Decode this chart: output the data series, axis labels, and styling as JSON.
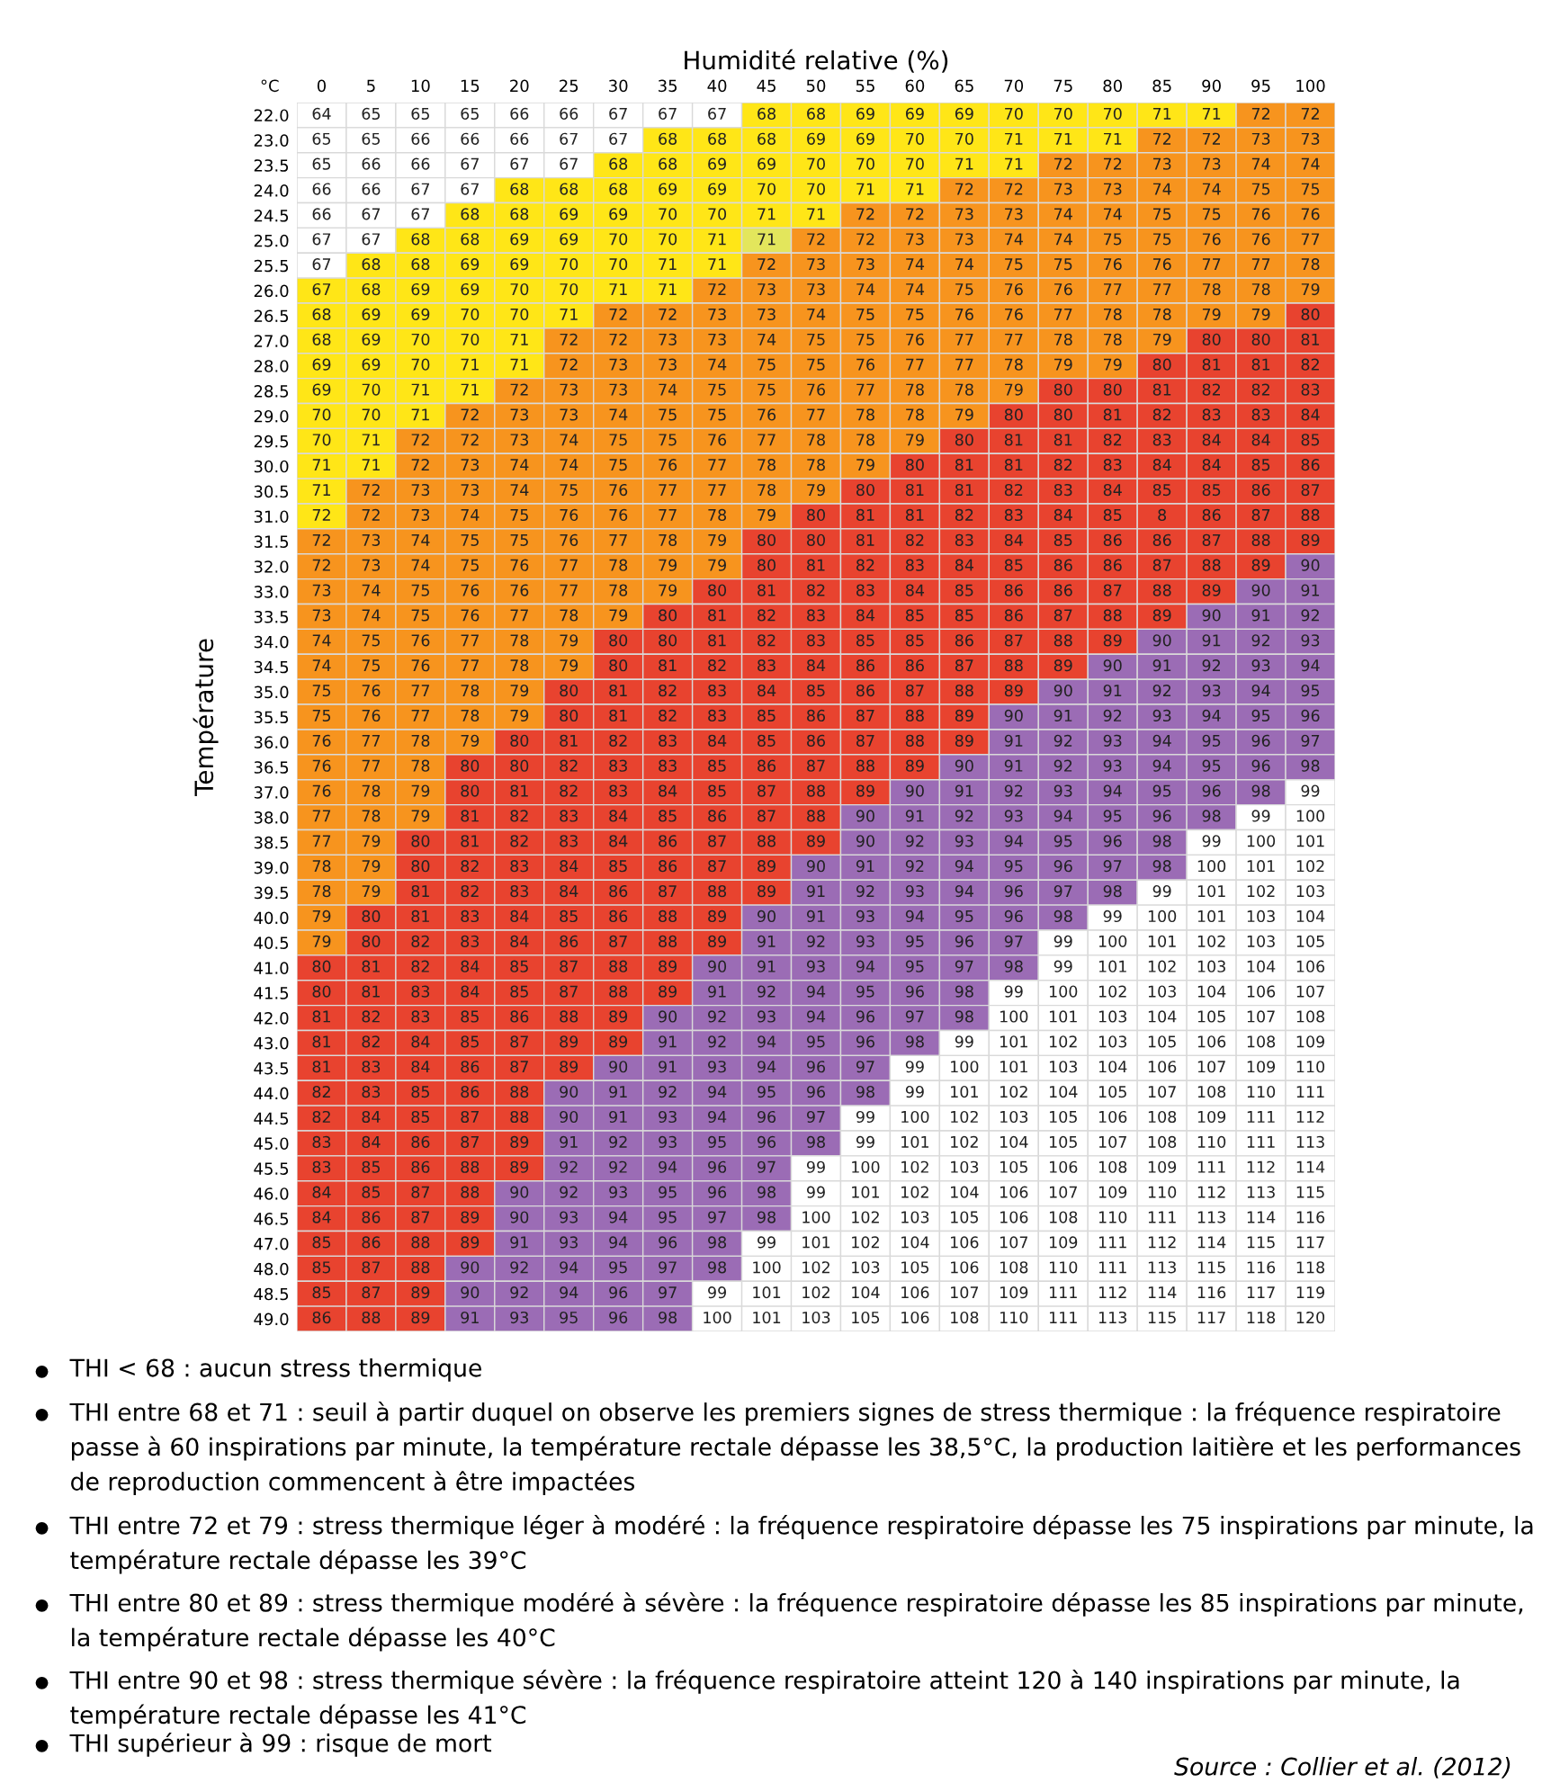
{
  "chart_data": {
    "type": "heatmap",
    "data_labels": true,
    "xlabel": "Humidité relative (%)",
    "ylabel": "Température",
    "categories": [
      "0",
      "5",
      "10",
      "15",
      "20",
      "25",
      "30",
      "35",
      "40",
      "45",
      "50",
      "55",
      "60",
      "65",
      "70",
      "75",
      "80",
      "85",
      "90",
      "95",
      "100"
    ],
    "y_categories": [
      "22.0",
      "23.0",
      "23.5",
      "24.0",
      "24.5",
      "25.0",
      "25.5",
      "26.0",
      "26.5",
      "27.0",
      "28.0",
      "28.5",
      "29.0",
      "29.5",
      "30.0",
      "30.5",
      "31.0",
      "31.5",
      "32.0",
      "33.0",
      "33.5",
      "34.0",
      "34.5",
      "35.0",
      "35.5",
      "36.0",
      "36.5",
      "37.0",
      "38.0",
      "38.5",
      "39.0",
      "39.5",
      "40.0",
      "40.5",
      "41.0",
      "41.5",
      "42.0",
      "43.0",
      "43.5",
      "44.0",
      "44.5",
      "45.0",
      "45.5",
      "46.0",
      "46.5",
      "47.0",
      "48.0",
      "48.5",
      "49.0"
    ],
    "cells": [
      [
        64,
        65,
        65,
        65,
        66,
        66,
        67,
        67,
        67,
        68,
        68,
        69,
        69,
        69,
        70,
        70,
        70,
        71,
        71,
        72,
        72
      ],
      [
        65,
        65,
        66,
        66,
        66,
        67,
        67,
        68,
        68,
        68,
        69,
        69,
        70,
        70,
        71,
        71,
        71,
        72,
        72,
        73,
        73
      ],
      [
        65,
        66,
        66,
        67,
        67,
        67,
        68,
        68,
        69,
        69,
        70,
        70,
        70,
        71,
        71,
        72,
        72,
        73,
        73,
        74,
        74
      ],
      [
        66,
        66,
        67,
        67,
        68,
        68,
        68,
        69,
        69,
        70,
        70,
        71,
        71,
        72,
        72,
        73,
        73,
        74,
        74,
        75,
        75
      ],
      [
        66,
        67,
        67,
        68,
        68,
        69,
        69,
        70,
        70,
        71,
        71,
        72,
        72,
        73,
        73,
        74,
        74,
        75,
        75,
        76,
        76
      ],
      [
        67,
        67,
        68,
        68,
        69,
        69,
        70,
        70,
        71,
        71,
        72,
        72,
        73,
        73,
        74,
        74,
        75,
        75,
        76,
        76,
        77
      ],
      [
        67,
        68,
        68,
        69,
        69,
        70,
        70,
        71,
        71,
        72,
        73,
        73,
        74,
        74,
        75,
        75,
        76,
        76,
        77,
        77,
        78
      ],
      [
        67,
        68,
        69,
        69,
        70,
        70,
        71,
        71,
        72,
        73,
        73,
        74,
        74,
        75,
        76,
        76,
        77,
        77,
        78,
        78,
        79
      ],
      [
        68,
        69,
        69,
        70,
        70,
        71,
        72,
        72,
        73,
        73,
        74,
        75,
        75,
        76,
        76,
        77,
        78,
        78,
        79,
        79,
        80
      ],
      [
        68,
        69,
        70,
        70,
        71,
        72,
        72,
        73,
        73,
        74,
        75,
        75,
        76,
        77,
        77,
        78,
        78,
        79,
        80,
        80,
        81
      ],
      [
        69,
        69,
        70,
        71,
        71,
        72,
        73,
        73,
        74,
        75,
        75,
        76,
        77,
        77,
        78,
        79,
        79,
        80,
        81,
        81,
        82
      ],
      [
        69,
        70,
        71,
        71,
        72,
        73,
        73,
        74,
        75,
        75,
        76,
        77,
        78,
        78,
        79,
        80,
        80,
        81,
        82,
        82,
        83
      ],
      [
        70,
        70,
        71,
        72,
        73,
        73,
        74,
        75,
        75,
        76,
        77,
        78,
        78,
        79,
        80,
        80,
        81,
        82,
        83,
        83,
        84
      ],
      [
        70,
        71,
        72,
        72,
        73,
        74,
        75,
        75,
        76,
        77,
        78,
        78,
        79,
        80,
        81,
        81,
        82,
        83,
        84,
        84,
        85
      ],
      [
        71,
        71,
        72,
        73,
        74,
        74,
        75,
        76,
        77,
        78,
        78,
        79,
        80,
        81,
        81,
        82,
        83,
        84,
        84,
        85,
        86
      ],
      [
        71,
        72,
        73,
        73,
        74,
        75,
        76,
        77,
        77,
        78,
        79,
        80,
        81,
        81,
        82,
        83,
        84,
        85,
        85,
        86,
        87
      ],
      [
        72,
        72,
        73,
        74,
        75,
        76,
        76,
        77,
        78,
        79,
        80,
        81,
        81,
        82,
        83,
        84,
        85,
        8,
        86,
        87,
        88
      ],
      [
        72,
        73,
        74,
        75,
        75,
        76,
        77,
        78,
        79,
        80,
        80,
        81,
        82,
        83,
        84,
        85,
        86,
        86,
        87,
        88,
        89
      ],
      [
        72,
        73,
        74,
        75,
        76,
        77,
        78,
        79,
        79,
        80,
        81,
        82,
        83,
        84,
        85,
        86,
        86,
        87,
        88,
        89,
        90
      ],
      [
        73,
        74,
        75,
        76,
        76,
        77,
        78,
        79,
        80,
        81,
        82,
        83,
        84,
        85,
        86,
        86,
        87,
        88,
        89,
        90,
        91
      ],
      [
        73,
        74,
        75,
        76,
        77,
        78,
        79,
        80,
        81,
        82,
        83,
        84,
        85,
        85,
        86,
        87,
        88,
        89,
        90,
        91,
        92
      ],
      [
        74,
        75,
        76,
        77,
        78,
        79,
        80,
        80,
        81,
        82,
        83,
        85,
        85,
        86,
        87,
        88,
        89,
        90,
        91,
        92,
        93
      ],
      [
        74,
        75,
        76,
        77,
        78,
        79,
        80,
        81,
        82,
        83,
        84,
        86,
        86,
        87,
        88,
        89,
        90,
        91,
        92,
        93,
        94
      ],
      [
        75,
        76,
        77,
        78,
        79,
        80,
        81,
        82,
        83,
        84,
        85,
        86,
        87,
        88,
        89,
        90,
        91,
        92,
        93,
        94,
        95
      ],
      [
        75,
        76,
        77,
        78,
        79,
        80,
        81,
        82,
        83,
        85,
        86,
        87,
        88,
        89,
        90,
        91,
        92,
        93,
        94,
        95,
        96
      ],
      [
        76,
        77,
        78,
        79,
        80,
        81,
        82,
        83,
        84,
        85,
        86,
        87,
        88,
        89,
        91,
        92,
        93,
        94,
        95,
        96,
        97
      ],
      [
        76,
        77,
        78,
        80,
        80,
        82,
        83,
        83,
        85,
        86,
        87,
        88,
        89,
        90,
        91,
        92,
        93,
        94,
        95,
        96,
        98
      ],
      [
        76,
        78,
        79,
        80,
        81,
        82,
        83,
        84,
        85,
        87,
        88,
        89,
        90,
        91,
        92,
        93,
        94,
        95,
        96,
        98,
        99
      ],
      [
        77,
        78,
        79,
        81,
        82,
        83,
        84,
        85,
        86,
        87,
        88,
        90,
        91,
        92,
        93,
        94,
        95,
        96,
        98,
        99,
        100
      ],
      [
        77,
        79,
        80,
        81,
        82,
        83,
        84,
        86,
        87,
        88,
        89,
        90,
        92,
        93,
        94,
        95,
        96,
        98,
        99,
        100,
        101
      ],
      [
        78,
        79,
        80,
        82,
        83,
        84,
        85,
        86,
        87,
        89,
        90,
        91,
        92,
        94,
        95,
        96,
        97,
        98,
        100,
        101,
        102
      ],
      [
        78,
        79,
        81,
        82,
        83,
        84,
        86,
        87,
        88,
        89,
        91,
        92,
        93,
        94,
        96,
        97,
        98,
        99,
        101,
        102,
        103
      ],
      [
        79,
        80,
        81,
        83,
        84,
        85,
        86,
        88,
        89,
        90,
        91,
        93,
        94,
        95,
        96,
        98,
        99,
        100,
        101,
        103,
        104
      ],
      [
        79,
        80,
        82,
        83,
        84,
        86,
        87,
        88,
        89,
        91,
        92,
        93,
        95,
        96,
        97,
        99,
        100,
        101,
        102,
        103,
        105
      ],
      [
        80,
        81,
        82,
        84,
        85,
        87,
        88,
        89,
        90,
        91,
        93,
        94,
        95,
        97,
        98,
        99,
        101,
        102,
        103,
        104,
        106
      ],
      [
        80,
        81,
        83,
        84,
        85,
        87,
        88,
        89,
        91,
        92,
        94,
        95,
        96,
        98,
        99,
        100,
        102,
        103,
        104,
        106,
        107
      ],
      [
        81,
        82,
        83,
        85,
        86,
        88,
        89,
        90,
        92,
        93,
        94,
        96,
        97,
        98,
        100,
        101,
        103,
        104,
        105,
        107,
        108
      ],
      [
        81,
        82,
        84,
        85,
        87,
        89,
        89,
        91,
        92,
        94,
        95,
        96,
        98,
        99,
        101,
        102,
        103,
        105,
        106,
        108,
        109
      ],
      [
        81,
        83,
        84,
        86,
        87,
        89,
        90,
        91,
        93,
        94,
        96,
        97,
        99,
        100,
        101,
        103,
        104,
        106,
        107,
        109,
        110
      ],
      [
        82,
        83,
        85,
        86,
        88,
        90,
        91,
        92,
        94,
        95,
        96,
        98,
        99,
        101,
        102,
        104,
        105,
        107,
        108,
        110,
        111
      ],
      [
        82,
        84,
        85,
        87,
        88,
        90,
        91,
        93,
        94,
        96,
        97,
        99,
        100,
        102,
        103,
        105,
        106,
        108,
        109,
        111,
        112
      ],
      [
        83,
        84,
        86,
        87,
        89,
        91,
        92,
        93,
        95,
        96,
        98,
        99,
        101,
        102,
        104,
        105,
        107,
        108,
        110,
        111,
        113
      ],
      [
        83,
        85,
        86,
        88,
        89,
        92,
        92,
        94,
        96,
        97,
        99,
        100,
        102,
        103,
        105,
        106,
        108,
        109,
        111,
        112,
        114
      ],
      [
        84,
        85,
        87,
        88,
        90,
        92,
        93,
        95,
        96,
        98,
        99,
        101,
        102,
        104,
        106,
        107,
        109,
        110,
        112,
        113,
        115
      ],
      [
        84,
        86,
        87,
        89,
        90,
        93,
        94,
        95,
        97,
        98,
        100,
        102,
        103,
        105,
        106,
        108,
        110,
        111,
        113,
        114,
        116
      ],
      [
        85,
        86,
        88,
        89,
        91,
        93,
        94,
        96,
        98,
        99,
        101,
        102,
        104,
        106,
        107,
        109,
        111,
        112,
        114,
        115,
        117
      ],
      [
        85,
        87,
        88,
        90,
        92,
        94,
        95,
        97,
        98,
        100,
        102,
        103,
        105,
        106,
        108,
        110,
        111,
        113,
        115,
        116,
        118
      ],
      [
        85,
        87,
        89,
        90,
        92,
        94,
        96,
        97,
        99,
        101,
        102,
        104,
        106,
        107,
        109,
        111,
        112,
        114,
        116,
        117,
        119
      ],
      [
        86,
        88,
        89,
        91,
        93,
        95,
        96,
        98,
        100,
        101,
        103,
        105,
        106,
        108,
        110,
        111,
        113,
        115,
        117,
        118,
        120
      ]
    ],
    "colors": [
      [
        "#ffffff",
        "#ffffff",
        "#ffffff",
        "#ffffff",
        "#ffffff",
        "#ffffff",
        "#ffffff",
        "#ffffff",
        "#ffffff",
        "#ffe617",
        "#ffe617",
        "#ffe617",
        "#ffe617",
        "#ffe617",
        "#ffe617",
        "#ffe617",
        "#ffe617",
        "#ffe617",
        "#ffe617",
        "#f7941e",
        "#f7941e"
      ],
      [
        "#ffffff",
        "#ffffff",
        "#ffffff",
        "#ffffff",
        "#ffffff",
        "#ffffff",
        "#ffffff",
        "#ffe617",
        "#ffe617",
        "#ffe617",
        "#ffe617",
        "#ffe617",
        "#ffe617",
        "#ffe617",
        "#ffe617",
        "#ffe617",
        "#ffe617",
        "#f7941e",
        "#f7941e",
        "#f7941e",
        "#f7941e"
      ],
      [
        "#ffffff",
        "#ffffff",
        "#ffffff",
        "#ffffff",
        "#ffffff",
        "#ffffff",
        "#ffe617",
        "#ffe617",
        "#ffe617",
        "#ffe617",
        "#ffe617",
        "#ffe617",
        "#ffe617",
        "#ffe617",
        "#ffe617",
        "#f7941e",
        "#f7941e",
        "#f7941e",
        "#f7941e",
        "#f7941e",
        "#f7941e"
      ],
      [
        "#ffffff",
        "#ffffff",
        "#ffffff",
        "#ffffff",
        "#ffe617",
        "#ffe617",
        "#ffe617",
        "#ffe617",
        "#ffe617",
        "#ffe617",
        "#ffe617",
        "#ffe617",
        "#ffe617",
        "#f7941e",
        "#f7941e",
        "#f7941e",
        "#f7941e",
        "#f7941e",
        "#f7941e",
        "#f7941e",
        "#f7941e"
      ],
      [
        "#ffffff",
        "#ffffff",
        "#ffffff",
        "#ffe617",
        "#ffe617",
        "#ffe617",
        "#ffe617",
        "#ffe617",
        "#ffe617",
        "#ffe617",
        "#ffe617",
        "#f7941e",
        "#f7941e",
        "#f7941e",
        "#f7941e",
        "#f7941e",
        "#f7941e",
        "#f7941e",
        "#f7941e",
        "#f7941e",
        "#f7941e"
      ],
      [
        "#ffffff",
        "#ffffff",
        "#ffe617",
        "#ffe617",
        "#ffe617",
        "#ffe617",
        "#ffe617",
        "#ffe617",
        "#ffe617",
        "#e3e65c",
        "#f7941e",
        "#f7941e",
        "#f7941e",
        "#f7941e",
        "#f7941e",
        "#f7941e",
        "#f7941e",
        "#f7941e",
        "#f7941e",
        "#f7941e",
        "#f7941e"
      ],
      [
        "#ffffff",
        "#ffe617",
        "#ffe617",
        "#ffe617",
        "#ffe617",
        "#ffe617",
        "#ffe617",
        "#ffe617",
        "#ffe617",
        "#f7941e",
        "#f7941e",
        "#f7941e",
        "#f7941e",
        "#f7941e",
        "#f7941e",
        "#f7941e",
        "#f7941e",
        "#f7941e",
        "#f7941e",
        "#f7941e",
        "#f7941e"
      ],
      [
        "#ffe617",
        "#ffe617",
        "#ffe617",
        "#ffe617",
        "#ffe617",
        "#ffe617",
        "#ffe617",
        "#ffe617",
        "#f7941e",
        "#f7941e",
        "#f7941e",
        "#f7941e",
        "#f7941e",
        "#f7941e",
        "#f7941e",
        "#f7941e",
        "#f7941e",
        "#f7941e",
        "#f7941e",
        "#f7941e",
        "#f7941e"
      ],
      [
        "#ffe617",
        "#ffe617",
        "#ffe617",
        "#ffe617",
        "#ffe617",
        "#ffe617",
        "#f7941e",
        "#f7941e",
        "#f7941e",
        "#f7941e",
        "#f7941e",
        "#f7941e",
        "#f7941e",
        "#f7941e",
        "#f7941e",
        "#f7941e",
        "#f7941e",
        "#f7941e",
        "#f7941e",
        "#f7941e",
        "#e8432f"
      ],
      [
        "#ffe617",
        "#ffe617",
        "#ffe617",
        "#ffe617",
        "#ffe617",
        "#f7941e",
        "#f7941e",
        "#f7941e",
        "#f7941e",
        "#f7941e",
        "#f7941e",
        "#f7941e",
        "#f7941e",
        "#f7941e",
        "#f7941e",
        "#f7941e",
        "#f7941e",
        "#f7941e",
        "#e8432f",
        "#e8432f",
        "#e8432f"
      ],
      [
        "#ffe617",
        "#ffe617",
        "#ffe617",
        "#ffe617",
        "#ffe617",
        "#f7941e",
        "#f7941e",
        "#f7941e",
        "#f7941e",
        "#f7941e",
        "#f7941e",
        "#f7941e",
        "#f7941e",
        "#f7941e",
        "#f7941e",
        "#f7941e",
        "#f7941e",
        "#e8432f",
        "#e8432f",
        "#e8432f",
        "#e8432f"
      ],
      [
        "#ffe617",
        "#ffe617",
        "#ffe617",
        "#ffe617",
        "#f7941e",
        "#f7941e",
        "#f7941e",
        "#f7941e",
        "#f7941e",
        "#f7941e",
        "#f7941e",
        "#f7941e",
        "#f7941e",
        "#f7941e",
        "#f7941e",
        "#e8432f",
        "#e8432f",
        "#e8432f",
        "#e8432f",
        "#e8432f",
        "#e8432f"
      ],
      [
        "#ffe617",
        "#ffe617",
        "#ffe617",
        "#f7941e",
        "#f7941e",
        "#f7941e",
        "#f7941e",
        "#f7941e",
        "#f7941e",
        "#f7941e",
        "#f7941e",
        "#f7941e",
        "#f7941e",
        "#f7941e",
        "#e8432f",
        "#e8432f",
        "#e8432f",
        "#e8432f",
        "#e8432f",
        "#e8432f",
        "#e8432f"
      ],
      [
        "#ffe617",
        "#ffe617",
        "#f7941e",
        "#f7941e",
        "#f7941e",
        "#f7941e",
        "#f7941e",
        "#f7941e",
        "#f7941e",
        "#f7941e",
        "#f7941e",
        "#f7941e",
        "#f7941e",
        "#e8432f",
        "#e8432f",
        "#e8432f",
        "#e8432f",
        "#e8432f",
        "#e8432f",
        "#e8432f",
        "#e8432f"
      ],
      [
        "#ffe617",
        "#ffe617",
        "#f7941e",
        "#f7941e",
        "#f7941e",
        "#f7941e",
        "#f7941e",
        "#f7941e",
        "#f7941e",
        "#f7941e",
        "#f7941e",
        "#f7941e",
        "#e8432f",
        "#e8432f",
        "#e8432f",
        "#e8432f",
        "#e8432f",
        "#e8432f",
        "#e8432f",
        "#e8432f",
        "#e8432f"
      ],
      [
        "#ffe617",
        "#f7941e",
        "#f7941e",
        "#f7941e",
        "#f7941e",
        "#f7941e",
        "#f7941e",
        "#f7941e",
        "#f7941e",
        "#f7941e",
        "#f7941e",
        "#e8432f",
        "#e8432f",
        "#e8432f",
        "#e8432f",
        "#e8432f",
        "#e8432f",
        "#e8432f",
        "#e8432f",
        "#e8432f",
        "#e8432f"
      ],
      [
        "#ffe617",
        "#f7941e",
        "#f7941e",
        "#f7941e",
        "#f7941e",
        "#f7941e",
        "#f7941e",
        "#f7941e",
        "#f7941e",
        "#f7941e",
        "#e8432f",
        "#e8432f",
        "#e8432f",
        "#e8432f",
        "#e8432f",
        "#e8432f",
        "#e8432f",
        "#e8432f",
        "#e8432f",
        "#e8432f",
        "#e8432f"
      ],
      [
        "#f7941e",
        "#f7941e",
        "#f7941e",
        "#f7941e",
        "#f7941e",
        "#f7941e",
        "#f7941e",
        "#f7941e",
        "#f7941e",
        "#e8432f",
        "#e8432f",
        "#e8432f",
        "#e8432f",
        "#e8432f",
        "#e8432f",
        "#e8432f",
        "#e8432f",
        "#e8432f",
        "#e8432f",
        "#e8432f",
        "#e8432f"
      ],
      [
        "#f7941e",
        "#f7941e",
        "#f7941e",
        "#f7941e",
        "#f7941e",
        "#f7941e",
        "#f7941e",
        "#f7941e",
        "#f7941e",
        "#e8432f",
        "#e8432f",
        "#e8432f",
        "#e8432f",
        "#e8432f",
        "#e8432f",
        "#e8432f",
        "#e8432f",
        "#e8432f",
        "#e8432f",
        "#e8432f",
        "#9b6cb5"
      ],
      [
        "#f7941e",
        "#f7941e",
        "#f7941e",
        "#f7941e",
        "#f7941e",
        "#f7941e",
        "#f7941e",
        "#f7941e",
        "#e8432f",
        "#e8432f",
        "#e8432f",
        "#e8432f",
        "#e8432f",
        "#e8432f",
        "#e8432f",
        "#e8432f",
        "#e8432f",
        "#e8432f",
        "#e8432f",
        "#9b6cb5",
        "#9b6cb5"
      ],
      [
        "#f7941e",
        "#f7941e",
        "#f7941e",
        "#f7941e",
        "#f7941e",
        "#f7941e",
        "#f7941e",
        "#e8432f",
        "#e8432f",
        "#e8432f",
        "#e8432f",
        "#e8432f",
        "#e8432f",
        "#e8432f",
        "#e8432f",
        "#e8432f",
        "#e8432f",
        "#e8432f",
        "#9b6cb5",
        "#9b6cb5",
        "#9b6cb5"
      ],
      [
        "#f7941e",
        "#f7941e",
        "#f7941e",
        "#f7941e",
        "#f7941e",
        "#f7941e",
        "#e8432f",
        "#e8432f",
        "#e8432f",
        "#e8432f",
        "#e8432f",
        "#e8432f",
        "#e8432f",
        "#e8432f",
        "#e8432f",
        "#e8432f",
        "#e8432f",
        "#9b6cb5",
        "#9b6cb5",
        "#9b6cb5",
        "#9b6cb5"
      ],
      [
        "#f7941e",
        "#f7941e",
        "#f7941e",
        "#f7941e",
        "#f7941e",
        "#f7941e",
        "#e8432f",
        "#e8432f",
        "#e8432f",
        "#e8432f",
        "#e8432f",
        "#e8432f",
        "#e8432f",
        "#e8432f",
        "#e8432f",
        "#e8432f",
        "#9b6cb5",
        "#9b6cb5",
        "#9b6cb5",
        "#9b6cb5",
        "#9b6cb5"
      ],
      [
        "#f7941e",
        "#f7941e",
        "#f7941e",
        "#f7941e",
        "#f7941e",
        "#e8432f",
        "#e8432f",
        "#e8432f",
        "#e8432f",
        "#e8432f",
        "#e8432f",
        "#e8432f",
        "#e8432f",
        "#e8432f",
        "#e8432f",
        "#9b6cb5",
        "#9b6cb5",
        "#9b6cb5",
        "#9b6cb5",
        "#9b6cb5",
        "#9b6cb5"
      ],
      [
        "#f7941e",
        "#f7941e",
        "#f7941e",
        "#f7941e",
        "#f7941e",
        "#e8432f",
        "#e8432f",
        "#e8432f",
        "#e8432f",
        "#e8432f",
        "#e8432f",
        "#e8432f",
        "#e8432f",
        "#e8432f",
        "#9b6cb5",
        "#9b6cb5",
        "#9b6cb5",
        "#9b6cb5",
        "#9b6cb5",
        "#9b6cb5",
        "#9b6cb5"
      ],
      [
        "#f7941e",
        "#f7941e",
        "#f7941e",
        "#f7941e",
        "#e8432f",
        "#e8432f",
        "#e8432f",
        "#e8432f",
        "#e8432f",
        "#e8432f",
        "#e8432f",
        "#e8432f",
        "#e8432f",
        "#e8432f",
        "#9b6cb5",
        "#9b6cb5",
        "#9b6cb5",
        "#9b6cb5",
        "#9b6cb5",
        "#9b6cb5",
        "#9b6cb5"
      ],
      [
        "#f7941e",
        "#f7941e",
        "#f7941e",
        "#e8432f",
        "#e8432f",
        "#e8432f",
        "#e8432f",
        "#e8432f",
        "#e8432f",
        "#e8432f",
        "#e8432f",
        "#e8432f",
        "#e8432f",
        "#9b6cb5",
        "#9b6cb5",
        "#9b6cb5",
        "#9b6cb5",
        "#9b6cb5",
        "#9b6cb5",
        "#9b6cb5",
        "#9b6cb5"
      ],
      [
        "#f7941e",
        "#f7941e",
        "#f7941e",
        "#e8432f",
        "#e8432f",
        "#e8432f",
        "#e8432f",
        "#e8432f",
        "#e8432f",
        "#e8432f",
        "#e8432f",
        "#e8432f",
        "#9b6cb5",
        "#9b6cb5",
        "#9b6cb5",
        "#9b6cb5",
        "#9b6cb5",
        "#9b6cb5",
        "#9b6cb5",
        "#9b6cb5",
        "#ffffff"
      ],
      [
        "#f7941e",
        "#f7941e",
        "#f7941e",
        "#e8432f",
        "#e8432f",
        "#e8432f",
        "#e8432f",
        "#e8432f",
        "#e8432f",
        "#e8432f",
        "#e8432f",
        "#9b6cb5",
        "#9b6cb5",
        "#9b6cb5",
        "#9b6cb5",
        "#9b6cb5",
        "#9b6cb5",
        "#9b6cb5",
        "#9b6cb5",
        "#ffffff",
        "#ffffff"
      ],
      [
        "#f7941e",
        "#f7941e",
        "#e8432f",
        "#e8432f",
        "#e8432f",
        "#e8432f",
        "#e8432f",
        "#e8432f",
        "#e8432f",
        "#e8432f",
        "#e8432f",
        "#9b6cb5",
        "#9b6cb5",
        "#9b6cb5",
        "#9b6cb5",
        "#9b6cb5",
        "#9b6cb5",
        "#9b6cb5",
        "#ffffff",
        "#ffffff",
        "#ffffff"
      ],
      [
        "#f7941e",
        "#f7941e",
        "#e8432f",
        "#e8432f",
        "#e8432f",
        "#e8432f",
        "#e8432f",
        "#e8432f",
        "#e8432f",
        "#e8432f",
        "#9b6cb5",
        "#9b6cb5",
        "#9b6cb5",
        "#9b6cb5",
        "#9b6cb5",
        "#9b6cb5",
        "#9b6cb5",
        "#9b6cb5",
        "#ffffff",
        "#ffffff",
        "#ffffff"
      ],
      [
        "#f7941e",
        "#f7941e",
        "#e8432f",
        "#e8432f",
        "#e8432f",
        "#e8432f",
        "#e8432f",
        "#e8432f",
        "#e8432f",
        "#e8432f",
        "#9b6cb5",
        "#9b6cb5",
        "#9b6cb5",
        "#9b6cb5",
        "#9b6cb5",
        "#9b6cb5",
        "#9b6cb5",
        "#ffffff",
        "#ffffff",
        "#ffffff",
        "#ffffff"
      ],
      [
        "#f7941e",
        "#e8432f",
        "#e8432f",
        "#e8432f",
        "#e8432f",
        "#e8432f",
        "#e8432f",
        "#e8432f",
        "#e8432f",
        "#9b6cb5",
        "#9b6cb5",
        "#9b6cb5",
        "#9b6cb5",
        "#9b6cb5",
        "#9b6cb5",
        "#9b6cb5",
        "#ffffff",
        "#ffffff",
        "#ffffff",
        "#ffffff",
        "#ffffff"
      ],
      [
        "#f7941e",
        "#e8432f",
        "#e8432f",
        "#e8432f",
        "#e8432f",
        "#e8432f",
        "#e8432f",
        "#e8432f",
        "#e8432f",
        "#9b6cb5",
        "#9b6cb5",
        "#9b6cb5",
        "#9b6cb5",
        "#9b6cb5",
        "#9b6cb5",
        "#ffffff",
        "#ffffff",
        "#ffffff",
        "#ffffff",
        "#ffffff",
        "#ffffff"
      ],
      [
        "#e8432f",
        "#e8432f",
        "#e8432f",
        "#e8432f",
        "#e8432f",
        "#e8432f",
        "#e8432f",
        "#e8432f",
        "#9b6cb5",
        "#9b6cb5",
        "#9b6cb5",
        "#9b6cb5",
        "#9b6cb5",
        "#9b6cb5",
        "#9b6cb5",
        "#ffffff",
        "#ffffff",
        "#ffffff",
        "#ffffff",
        "#ffffff",
        "#ffffff"
      ],
      [
        "#e8432f",
        "#e8432f",
        "#e8432f",
        "#e8432f",
        "#e8432f",
        "#e8432f",
        "#e8432f",
        "#e8432f",
        "#9b6cb5",
        "#9b6cb5",
        "#9b6cb5",
        "#9b6cb5",
        "#9b6cb5",
        "#9b6cb5",
        "#ffffff",
        "#ffffff",
        "#ffffff",
        "#ffffff",
        "#ffffff",
        "#ffffff",
        "#ffffff"
      ],
      [
        "#e8432f",
        "#e8432f",
        "#e8432f",
        "#e8432f",
        "#e8432f",
        "#e8432f",
        "#e8432f",
        "#9b6cb5",
        "#9b6cb5",
        "#9b6cb5",
        "#9b6cb5",
        "#9b6cb5",
        "#9b6cb5",
        "#9b6cb5",
        "#ffffff",
        "#ffffff",
        "#ffffff",
        "#ffffff",
        "#ffffff",
        "#ffffff",
        "#ffffff"
      ],
      [
        "#e8432f",
        "#e8432f",
        "#e8432f",
        "#e8432f",
        "#e8432f",
        "#e8432f",
        "#e8432f",
        "#9b6cb5",
        "#9b6cb5",
        "#9b6cb5",
        "#9b6cb5",
        "#9b6cb5",
        "#9b6cb5",
        "#ffffff",
        "#ffffff",
        "#ffffff",
        "#ffffff",
        "#ffffff",
        "#ffffff",
        "#ffffff",
        "#ffffff"
      ],
      [
        "#e8432f",
        "#e8432f",
        "#e8432f",
        "#e8432f",
        "#e8432f",
        "#e8432f",
        "#9b6cb5",
        "#9b6cb5",
        "#9b6cb5",
        "#9b6cb5",
        "#9b6cb5",
        "#9b6cb5",
        "#ffffff",
        "#ffffff",
        "#ffffff",
        "#ffffff",
        "#ffffff",
        "#ffffff",
        "#ffffff",
        "#ffffff",
        "#ffffff"
      ],
      [
        "#e8432f",
        "#e8432f",
        "#e8432f",
        "#e8432f",
        "#e8432f",
        "#9b6cb5",
        "#9b6cb5",
        "#9b6cb5",
        "#9b6cb5",
        "#9b6cb5",
        "#9b6cb5",
        "#9b6cb5",
        "#ffffff",
        "#ffffff",
        "#ffffff",
        "#ffffff",
        "#ffffff",
        "#ffffff",
        "#ffffff",
        "#ffffff",
        "#ffffff"
      ],
      [
        "#e8432f",
        "#e8432f",
        "#e8432f",
        "#e8432f",
        "#e8432f",
        "#9b6cb5",
        "#9b6cb5",
        "#9b6cb5",
        "#9b6cb5",
        "#9b6cb5",
        "#9b6cb5",
        "#ffffff",
        "#ffffff",
        "#ffffff",
        "#ffffff",
        "#ffffff",
        "#ffffff",
        "#ffffff",
        "#ffffff",
        "#ffffff",
        "#ffffff"
      ],
      [
        "#e8432f",
        "#e8432f",
        "#e8432f",
        "#e8432f",
        "#e8432f",
        "#9b6cb5",
        "#9b6cb5",
        "#9b6cb5",
        "#9b6cb5",
        "#9b6cb5",
        "#9b6cb5",
        "#ffffff",
        "#ffffff",
        "#ffffff",
        "#ffffff",
        "#ffffff",
        "#ffffff",
        "#ffffff",
        "#ffffff",
        "#ffffff",
        "#ffffff"
      ],
      [
        "#e8432f",
        "#e8432f",
        "#e8432f",
        "#e8432f",
        "#e8432f",
        "#9b6cb5",
        "#9b6cb5",
        "#9b6cb5",
        "#9b6cb5",
        "#9b6cb5",
        "#ffffff",
        "#ffffff",
        "#ffffff",
        "#ffffff",
        "#ffffff",
        "#ffffff",
        "#ffffff",
        "#ffffff",
        "#ffffff",
        "#ffffff",
        "#ffffff"
      ],
      [
        "#e8432f",
        "#e8432f",
        "#e8432f",
        "#e8432f",
        "#9b6cb5",
        "#9b6cb5",
        "#9b6cb5",
        "#9b6cb5",
        "#9b6cb5",
        "#9b6cb5",
        "#ffffff",
        "#ffffff",
        "#ffffff",
        "#ffffff",
        "#ffffff",
        "#ffffff",
        "#ffffff",
        "#ffffff",
        "#ffffff",
        "#ffffff",
        "#ffffff"
      ],
      [
        "#e8432f",
        "#e8432f",
        "#e8432f",
        "#e8432f",
        "#9b6cb5",
        "#9b6cb5",
        "#9b6cb5",
        "#9b6cb5",
        "#9b6cb5",
        "#9b6cb5",
        "#ffffff",
        "#ffffff",
        "#ffffff",
        "#ffffff",
        "#ffffff",
        "#ffffff",
        "#ffffff",
        "#ffffff",
        "#ffffff",
        "#ffffff",
        "#ffffff"
      ],
      [
        "#e8432f",
        "#e8432f",
        "#e8432f",
        "#e8432f",
        "#9b6cb5",
        "#9b6cb5",
        "#9b6cb5",
        "#9b6cb5",
        "#9b6cb5",
        "#ffffff",
        "#ffffff",
        "#ffffff",
        "#ffffff",
        "#ffffff",
        "#ffffff",
        "#ffffff",
        "#ffffff",
        "#ffffff",
        "#ffffff",
        "#ffffff",
        "#ffffff"
      ],
      [
        "#e8432f",
        "#e8432f",
        "#e8432f",
        "#9b6cb5",
        "#9b6cb5",
        "#9b6cb5",
        "#9b6cb5",
        "#9b6cb5",
        "#9b6cb5",
        "#ffffff",
        "#ffffff",
        "#ffffff",
        "#ffffff",
        "#ffffff",
        "#ffffff",
        "#ffffff",
        "#ffffff",
        "#ffffff",
        "#ffffff",
        "#ffffff",
        "#ffffff"
      ],
      [
        "#e8432f",
        "#e8432f",
        "#e8432f",
        "#9b6cb5",
        "#9b6cb5",
        "#9b6cb5",
        "#9b6cb5",
        "#9b6cb5",
        "#ffffff",
        "#ffffff",
        "#ffffff",
        "#ffffff",
        "#ffffff",
        "#ffffff",
        "#ffffff",
        "#ffffff",
        "#ffffff",
        "#ffffff",
        "#ffffff",
        "#ffffff",
        "#ffffff"
      ],
      [
        "#e8432f",
        "#e8432f",
        "#e8432f",
        "#9b6cb5",
        "#9b6cb5",
        "#9b6cb5",
        "#9b6cb5",
        "#9b6cb5",
        "#ffffff",
        "#ffffff",
        "#ffffff",
        "#ffffff",
        "#ffffff",
        "#ffffff",
        "#ffffff",
        "#ffffff",
        "#ffffff",
        "#ffffff",
        "#ffffff",
        "#ffffff",
        "#ffffff"
      ]
    ],
    "annotations": [
      "°C",
      "THI < 68 : aucun stress thermique",
      "THI entre 68 et 71 : seuil à partir duquel on observe les premiers signes de stress thermique : la fréquence respiratoire passe à 60 inspirations par minute, la température rectale dépasse les 38,5°C, la production laitière et les performances de reproduction commencent à être impactées",
      "THI entre 72 et 79 : stress thermique léger à modéré : la fréquence respiratoire dépasse les 75 inspirations par minute, la température rectale dépasse les 39°C",
      "THI entre 80 et 89 : stress thermique modéré à sévère : la fréquence respiratoire dépasse les 85 inspirations par minute, la température rectale dépasse les 40°C",
      "THI entre 90 et 98 : stress thermique sévère : la fréquence respiratoire atteint 120 à 140 inspirations par minute, la température rectale dépasse les 41°C",
      "THI supérieur à 99 : risque de mort",
      "Source : Collier et al. (2012)"
    ]
  }
}
